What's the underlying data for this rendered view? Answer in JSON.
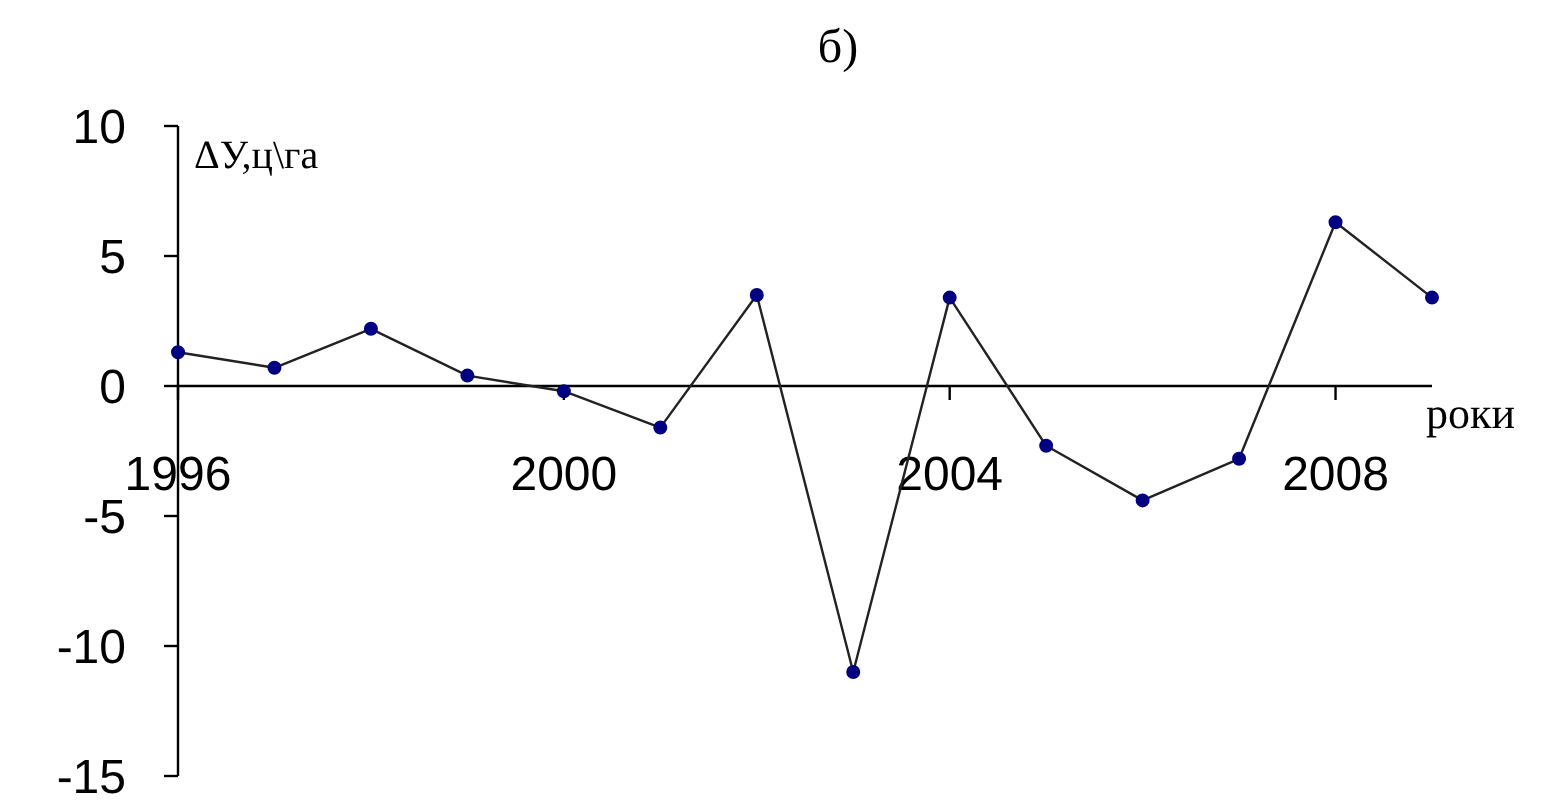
{
  "chart_data": {
    "type": "line",
    "title": "б)",
    "xlabel": "роки",
    "ylabel": "ΔУ,ц\\га",
    "x": [
      1996,
      1997,
      1998,
      1999,
      2000,
      2001,
      2002,
      2003,
      2004,
      2005,
      2006,
      2007,
      2008,
      2009
    ],
    "series": [
      {
        "color": "#000080",
        "values": [
          1.3,
          0.7,
          2.2,
          0.4,
          -0.2,
          -1.6,
          3.5,
          -11.0,
          3.4,
          -2.3,
          -4.4,
          -2.8,
          6.3,
          3.4
        ]
      }
    ],
    "xlim": [
      1996,
      2009
    ],
    "xticks": [
      1996,
      2000,
      2004,
      2008
    ],
    "ylim": [
      -15,
      10
    ],
    "yticks": [
      -15,
      -10,
      -5,
      0,
      5,
      10
    ],
    "marker": "circle"
  }
}
